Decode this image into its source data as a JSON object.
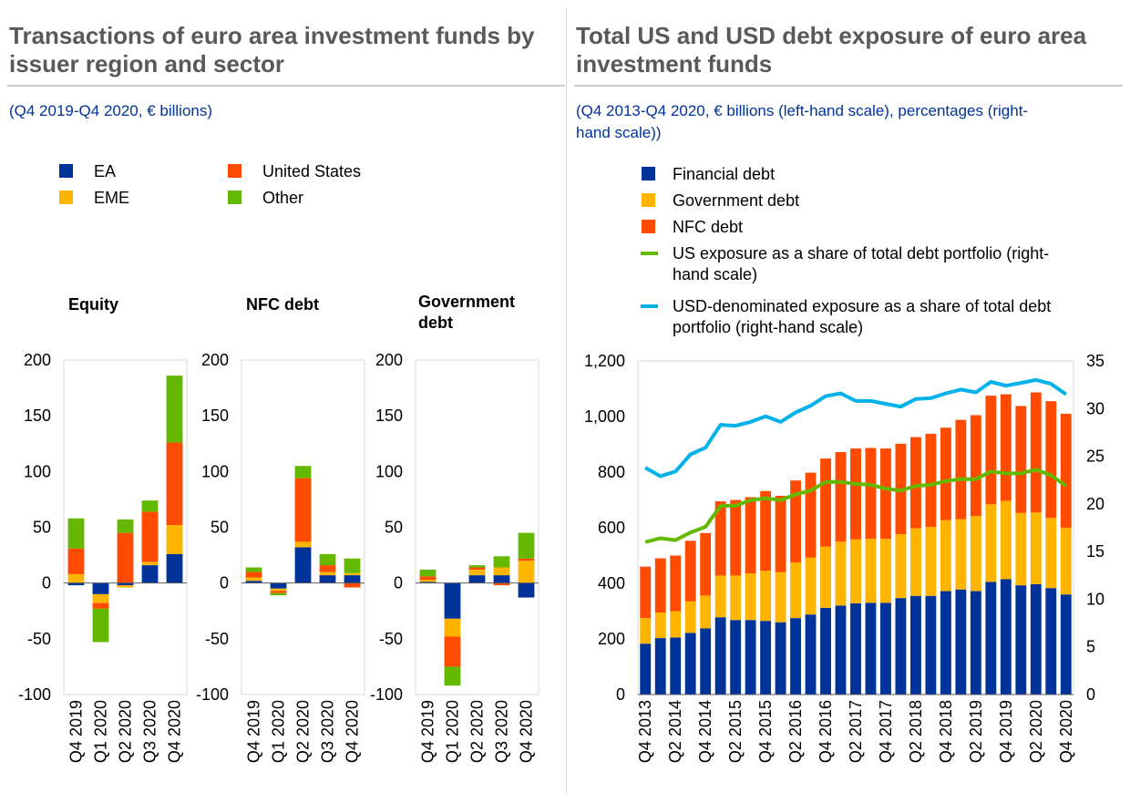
{
  "left": {
    "title": "Transactions of euro area investment funds by issuer region and sector",
    "title_line1": "Transactions of euro area investment funds by",
    "title_line2": "issuer region and sector",
    "subtitle": "(Q4 2019-Q4 2020, € billions)"
  },
  "right": {
    "title": "Total US and USD debt exposure of euro area investment funds",
    "title_line1": "Total US and USD debt exposure of euro area",
    "title_line2": "investment funds",
    "subtitle_line1": "(Q4 2013-Q4 2020, € billions (left-hand scale), percentages (right-",
    "subtitle_line2": "hand scale))"
  },
  "colors": {
    "ea": "#003399",
    "eme": "#ffb400",
    "us": "#ff4b00",
    "other": "#65b800",
    "financial": "#003399",
    "government": "#ffb400",
    "nfc": "#ff4b00",
    "us_share": "#65b800",
    "usd_share": "#00b1ea"
  },
  "chart_data": [
    {
      "type": "bar",
      "stacked": true,
      "facets": [
        "Equity",
        "NFC debt",
        "Government debt"
      ],
      "categories": [
        "Q4 2019",
        "Q1 2020",
        "Q2 2020",
        "Q3 2020",
        "Q4 2020"
      ],
      "legend": [
        "EA",
        "United States",
        "EME",
        "Other"
      ],
      "ylim": [
        -100,
        200
      ],
      "yticks": [
        200,
        150,
        100,
        50,
        0,
        -50,
        -100
      ],
      "ytick_labels": [
        "200",
        "150",
        "100",
        "50",
        "0",
        "-50",
        "-100"
      ],
      "grid": false,
      "panels": [
        {
          "title": "Equity",
          "series": [
            {
              "name": "EA",
              "values": [
                -2,
                -10,
                -2,
                16,
                26
              ]
            },
            {
              "name": "EME",
              "values": [
                8,
                -8,
                -2,
                3,
                26
              ]
            },
            {
              "name": "United States",
              "values": [
                23,
                -5,
                45,
                45,
                74
              ]
            },
            {
              "name": "Other",
              "values": [
                27,
                -30,
                12,
                10,
                60
              ]
            }
          ]
        },
        {
          "title": "NFC debt",
          "series": [
            {
              "name": "EA",
              "values": [
                2,
                -5,
                32,
                7,
                7
              ]
            },
            {
              "name": "EME",
              "values": [
                3,
                -2,
                5,
                3,
                2
              ]
            },
            {
              "name": "United States",
              "values": [
                5,
                -2,
                57,
                6,
                -4
              ]
            },
            {
              "name": "Other",
              "values": [
                4,
                -2,
                11,
                10,
                13
              ]
            }
          ]
        },
        {
          "title": "Government debt",
          "title_line1": "Government",
          "title_line2": "debt",
          "series": [
            {
              "name": "EA",
              "values": [
                1,
                -32,
                7,
                7,
                -13
              ]
            },
            {
              "name": "EME",
              "values": [
                2,
                -16,
                5,
                7,
                20
              ]
            },
            {
              "name": "United States",
              "values": [
                3,
                -27,
                2,
                -2,
                2
              ]
            },
            {
              "name": "Other",
              "values": [
                6,
                -17,
                2,
                10,
                23
              ]
            }
          ]
        }
      ]
    },
    {
      "type": "bar",
      "stacked": true,
      "secondary_type": "line",
      "categories": [
        "Q4 2013",
        "Q1 2014",
        "Q2 2014",
        "Q3 2014",
        "Q4 2014",
        "Q1 2015",
        "Q2 2015",
        "Q3 2015",
        "Q4 2015",
        "Q1 2016",
        "Q2 2016",
        "Q3 2016",
        "Q4 2016",
        "Q1 2017",
        "Q2 2017",
        "Q3 2017",
        "Q4 2017",
        "Q1 2018",
        "Q2 2018",
        "Q3 2018",
        "Q4 2018",
        "Q1 2019",
        "Q2 2019",
        "Q3 2019",
        "Q4 2019",
        "Q1 2020",
        "Q2 2020",
        "Q3 2020",
        "Q4 2020"
      ],
      "xtick_labels": [
        "Q4 2013",
        "Q2 2014",
        "Q4 2014",
        "Q2 2015",
        "Q4 2015",
        "Q2 2016",
        "Q4 2016",
        "Q2 2017",
        "Q4 2017",
        "Q2 2018",
        "Q4 2018",
        "Q2 2019",
        "Q4 2019",
        "Q2 2020",
        "Q4 2020"
      ],
      "ylim": [
        0,
        1200
      ],
      "yticks": [
        0,
        200,
        400,
        600,
        800,
        1000,
        1200
      ],
      "ytick_labels": [
        "0",
        "200",
        "400",
        "600",
        "800",
        "1,000",
        "1,200"
      ],
      "y2lim": [
        0,
        35
      ],
      "y2ticks": [
        0,
        5,
        10,
        15,
        20,
        25,
        30,
        35
      ],
      "y2tick_labels": [
        "0",
        "5",
        "10",
        "15",
        "20",
        "25",
        "30",
        "35"
      ],
      "grid": false,
      "series": [
        {
          "name": "Financial debt",
          "axis": "left",
          "values": [
            183,
            203,
            205,
            222,
            238,
            278,
            268,
            268,
            265,
            260,
            275,
            288,
            312,
            320,
            328,
            330,
            330,
            347,
            355,
            355,
            372,
            378,
            372,
            405,
            415,
            393,
            397,
            383,
            360
          ]
        },
        {
          "name": "Government debt",
          "axis": "left",
          "values": [
            92,
            92,
            95,
            113,
            118,
            150,
            160,
            168,
            180,
            180,
            200,
            205,
            220,
            230,
            230,
            230,
            230,
            230,
            243,
            248,
            255,
            253,
            270,
            280,
            282,
            260,
            258,
            252,
            240
          ]
        },
        {
          "name": "NFC debt",
          "axis": "left",
          "values": [
            185,
            195,
            200,
            218,
            225,
            267,
            272,
            274,
            287,
            275,
            295,
            305,
            317,
            322,
            327,
            327,
            325,
            325,
            328,
            335,
            333,
            357,
            363,
            390,
            383,
            385,
            432,
            420,
            410
          ]
        },
        {
          "name": "US exposure as a share of total debt portfolio (right-hand scale)",
          "axis": "right",
          "type": "line",
          "values": [
            16.0,
            16.4,
            16.2,
            17.0,
            17.6,
            19.8,
            19.8,
            20.4,
            20.6,
            20.4,
            21.0,
            21.4,
            22.3,
            22.3,
            22.1,
            22.0,
            21.6,
            21.4,
            21.9,
            22.0,
            22.4,
            22.6,
            22.6,
            23.4,
            23.2,
            23.2,
            23.6,
            23.0,
            21.9
          ]
        },
        {
          "name": "USD-denominated exposure as a share of total debt portfolio (right-hand scale)",
          "axis": "right",
          "type": "line",
          "values": [
            23.8,
            22.9,
            23.4,
            25.2,
            25.9,
            28.3,
            28.2,
            28.6,
            29.2,
            28.6,
            29.6,
            30.3,
            31.3,
            31.6,
            30.8,
            30.8,
            30.5,
            30.2,
            31.0,
            31.1,
            31.6,
            32.0,
            31.7,
            32.8,
            32.4,
            32.7,
            33.0,
            32.6,
            31.5
          ]
        }
      ],
      "legend": [
        {
          "name": "Financial debt",
          "lines": [
            "Financial debt"
          ],
          "shape": "square"
        },
        {
          "name": "Government debt",
          "lines": [
            "Government debt"
          ],
          "shape": "square"
        },
        {
          "name": "NFC debt",
          "lines": [
            "NFC debt"
          ],
          "shape": "square"
        },
        {
          "name": "US exposure as a share of total debt portfolio (right-hand scale)",
          "lines": [
            "US exposure as a share of total debt portfolio (right-",
            "hand scale)"
          ],
          "shape": "line"
        },
        {
          "name": "USD-denominated exposure as a share of total debt portfolio (right-hand scale)",
          "lines": [
            "USD-denominated exposure as a share of total debt",
            "portfolio (right-hand scale)"
          ],
          "shape": "line"
        }
      ]
    }
  ]
}
